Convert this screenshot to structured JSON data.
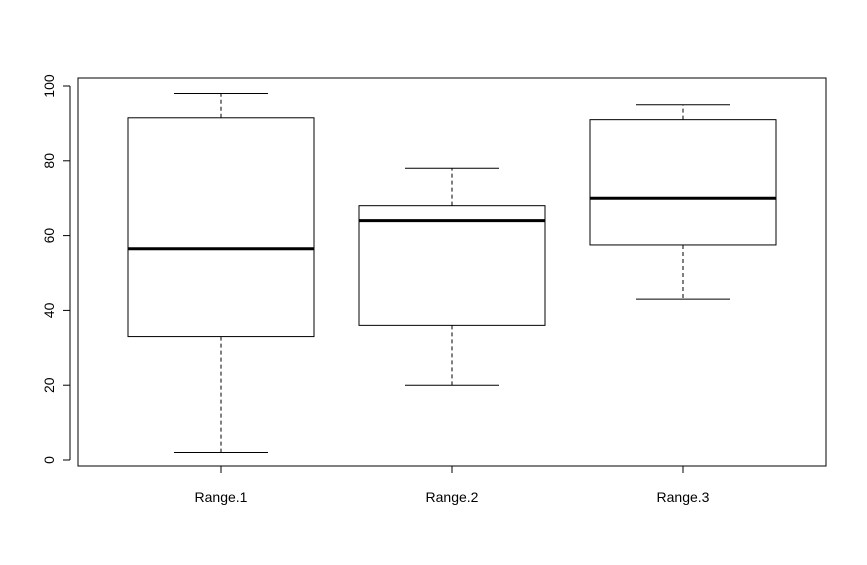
{
  "chart_data": {
    "type": "boxplot",
    "title": "",
    "xlabel": "",
    "ylabel": "",
    "categories": [
      "Range.1",
      "Range.2",
      "Range.3"
    ],
    "boxes": [
      {
        "name": "Range.1",
        "whisker_low": 2,
        "q1": 33,
        "median": 56.5,
        "q3": 91.5,
        "whisker_high": 98
      },
      {
        "name": "Range.2",
        "whisker_low": 20,
        "q1": 36,
        "median": 64,
        "q3": 68,
        "whisker_high": 78
      },
      {
        "name": "Range.3",
        "whisker_low": 43,
        "q1": 57.5,
        "median": 70,
        "q3": 91,
        "whisker_high": 95
      }
    ],
    "ylim": [
      0,
      100
    ],
    "yticks": [
      "0",
      "20",
      "40",
      "60",
      "80",
      "100"
    ],
    "grid": false,
    "legend": "none"
  }
}
